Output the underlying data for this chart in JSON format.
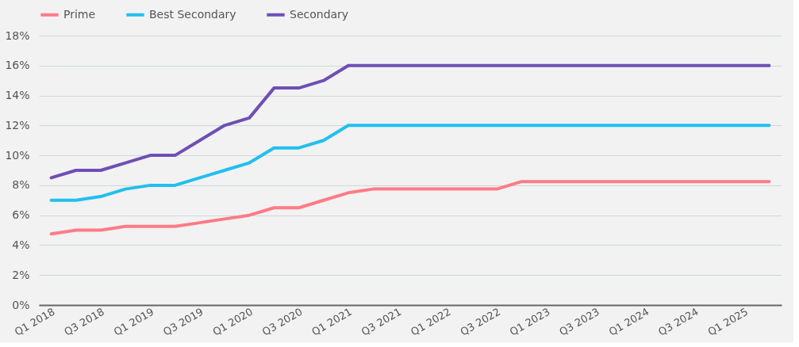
{
  "chart_data": {
    "type": "line",
    "categories": [
      "Q1 2018",
      null,
      "Q3 2018",
      null,
      "Q1 2019",
      null,
      "Q3 2019",
      null,
      "Q1 2020",
      null,
      "Q3 2020",
      null,
      "Q1 2021",
      null,
      "Q3 2021",
      null,
      "Q1 2022",
      null,
      "Q3 2022",
      null,
      "Q1 2023",
      null,
      "Q3 2023",
      null,
      "Q1 2024",
      null,
      "Q3 2024",
      null,
      "Q1 2025",
      null
    ],
    "series": [
      {
        "name": "Prime",
        "color": "#ff7b86",
        "values": [
          4.75,
          5,
          5,
          5.25,
          5.25,
          5.25,
          5.5,
          5.75,
          6,
          6.5,
          6.5,
          7,
          7.5,
          7.75,
          7.75,
          7.75,
          7.75,
          7.75,
          7.75,
          8.25,
          8.25,
          8.25,
          8.25,
          8.25,
          8.25,
          8.25,
          8.25,
          8.25,
          8.25,
          8.25
        ]
      },
      {
        "name": "Best Secondary",
        "color": "#22bfef",
        "values": [
          7,
          7,
          7.25,
          7.75,
          8,
          8,
          8.5,
          9,
          9.5,
          10.5,
          10.5,
          11,
          12,
          12,
          12,
          12,
          12,
          12,
          12,
          12,
          12,
          12,
          12,
          12,
          12,
          12,
          12,
          12,
          12,
          12
        ]
      },
      {
        "name": "Secondary",
        "color": "#6e4fb5",
        "values": [
          8.5,
          9,
          9,
          9.5,
          10,
          10,
          11,
          12,
          12.5,
          14.5,
          14.5,
          15,
          16,
          16,
          16,
          16,
          16,
          16,
          16,
          16,
          16,
          16,
          16,
          16,
          16,
          16,
          16,
          16,
          16,
          16
        ]
      }
    ],
    "ylim": [
      0,
      18
    ],
    "yticks": [
      {
        "value": 0,
        "label": "0%"
      },
      {
        "value": 2,
        "label": "2%"
      },
      {
        "value": 4,
        "label": "4%"
      },
      {
        "value": 6,
        "label": "6%"
      },
      {
        "value": 8,
        "label": "8%"
      },
      {
        "value": 10,
        "label": "10%"
      },
      {
        "value": 12,
        "label": "12%"
      },
      {
        "value": 14,
        "label": "14%"
      },
      {
        "value": 16,
        "label": "16%"
      },
      {
        "value": 18,
        "label": "18%"
      }
    ],
    "grid": "y",
    "legend": "top",
    "line_style": "solid"
  }
}
